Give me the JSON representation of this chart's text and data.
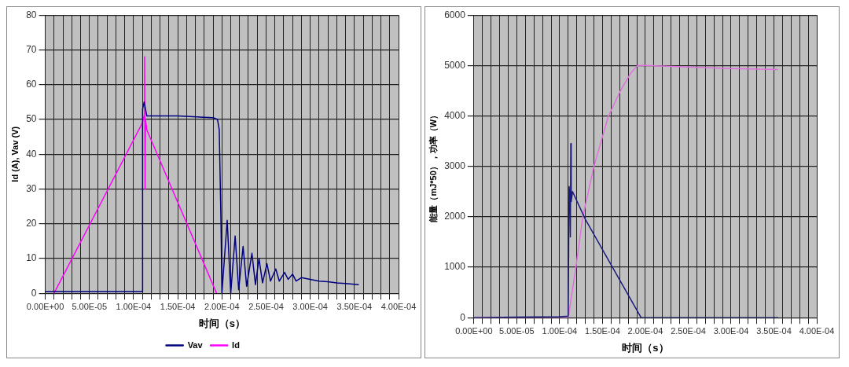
{
  "chart_data": [
    {
      "type": "line",
      "xlabel": "时间（s）",
      "ylabel": "Id (A), Vav (V)",
      "xlim": [
        0,
        0.0004
      ],
      "ylim": [
        0,
        80
      ],
      "xticks": [
        {
          "value": 0,
          "label": "0.00E+00"
        },
        {
          "value": 1e-05,
          "label": null
        },
        {
          "value": 2e-05,
          "label": null
        },
        {
          "value": 3e-05,
          "label": null
        },
        {
          "value": 4e-05,
          "label": null
        },
        {
          "value": 5e-05,
          "label": "5.00E-05"
        },
        {
          "value": 6e-05,
          "label": null
        },
        {
          "value": 7e-05,
          "label": null
        },
        {
          "value": 8e-05,
          "label": null
        },
        {
          "value": 9e-05,
          "label": null
        },
        {
          "value": 0.0001,
          "label": "1.00E-04"
        },
        {
          "value": 0.00011,
          "label": null
        },
        {
          "value": 0.00012,
          "label": null
        },
        {
          "value": 0.00013,
          "label": null
        },
        {
          "value": 0.00014,
          "label": null
        },
        {
          "value": 0.00015,
          "label": "1.50E-04"
        },
        {
          "value": 0.00016,
          "label": null
        },
        {
          "value": 0.00017,
          "label": null
        },
        {
          "value": 0.00018,
          "label": null
        },
        {
          "value": 0.00019,
          "label": null
        },
        {
          "value": 0.0002,
          "label": "2.00E-04"
        },
        {
          "value": 0.00021,
          "label": null
        },
        {
          "value": 0.00022,
          "label": null
        },
        {
          "value": 0.00023,
          "label": null
        },
        {
          "value": 0.00024,
          "label": null
        },
        {
          "value": 0.00025,
          "label": "2.50E-04"
        },
        {
          "value": 0.00026,
          "label": null
        },
        {
          "value": 0.00027,
          "label": null
        },
        {
          "value": 0.00028,
          "label": null
        },
        {
          "value": 0.00029,
          "label": null
        },
        {
          "value": 0.0003,
          "label": "3.00E-04"
        },
        {
          "value": 0.00031,
          "label": null
        },
        {
          "value": 0.00032,
          "label": null
        },
        {
          "value": 0.00033,
          "label": null
        },
        {
          "value": 0.00034,
          "label": null
        },
        {
          "value": 0.00035,
          "label": "3.50E-04"
        },
        {
          "value": 0.00036,
          "label": null
        },
        {
          "value": 0.00037,
          "label": null
        },
        {
          "value": 0.00038,
          "label": null
        },
        {
          "value": 0.00039,
          "label": null
        },
        {
          "value": 0.0004,
          "label": "4.00E-04"
        }
      ],
      "yticks": [
        0,
        10,
        20,
        30,
        40,
        50,
        60,
        70,
        80
      ],
      "grid": true,
      "legend": "bottom",
      "series": [
        {
          "name": "Vav",
          "color": "#000080",
          "x": [
            0,
            5e-05,
            0.0001,
            0.00011,
            0.0001102,
            0.000112,
            0.000115,
            0.00015,
            0.00019,
            0.000195,
            0.000197,
            0.000199,
            0.0002,
            0.000206,
            0.00021,
            0.000215,
            0.000219,
            0.000224,
            0.000228,
            0.000234,
            0.000238,
            0.000242,
            0.000246,
            0.000251,
            0.000255,
            0.000261,
            0.000265,
            0.000271,
            0.000275,
            0.00028,
            0.000284,
            0.00029,
            0.0003,
            0.00031,
            0.00032,
            0.00033,
            0.00034,
            0.000355
          ],
          "values": [
            0.5,
            0.5,
            0.5,
            0.5,
            53,
            55,
            51,
            51,
            50.5,
            50,
            47,
            20,
            0,
            21,
            0,
            16.5,
            1,
            13.5,
            2,
            11.5,
            2.5,
            10,
            3,
            8.5,
            3.5,
            7,
            3.5,
            6,
            4,
            5.5,
            3.5,
            4.5,
            4,
            3.5,
            3.3,
            3,
            2.8,
            2.5
          ]
        },
        {
          "name": "Id",
          "color": "#ff00ff",
          "x": [
            1e-05,
            0.00011,
            0.000112,
            0.0001125,
            0.000113,
            0.0001135,
            0.000115,
            0.000194
          ],
          "values": [
            0,
            49,
            51,
            68,
            30,
            50,
            47,
            0
          ]
        }
      ]
    },
    {
      "type": "line",
      "xlabel": "时间（s）",
      "ylabel": "能量（mJ*50），功率（W）",
      "xlim": [
        0,
        0.0004
      ],
      "ylim": [
        0,
        6000
      ],
      "xticks": [
        {
          "value": 0,
          "label": "0.00E+00"
        },
        {
          "value": 1e-05,
          "label": null
        },
        {
          "value": 2e-05,
          "label": null
        },
        {
          "value": 3e-05,
          "label": null
        },
        {
          "value": 4e-05,
          "label": null
        },
        {
          "value": 5e-05,
          "label": "5.00E-05"
        },
        {
          "value": 6e-05,
          "label": null
        },
        {
          "value": 7e-05,
          "label": null
        },
        {
          "value": 8e-05,
          "label": null
        },
        {
          "value": 9e-05,
          "label": null
        },
        {
          "value": 0.0001,
          "label": "1.00E-04"
        },
        {
          "value": 0.00011,
          "label": null
        },
        {
          "value": 0.00012,
          "label": null
        },
        {
          "value": 0.00013,
          "label": null
        },
        {
          "value": 0.00014,
          "label": null
        },
        {
          "value": 0.00015,
          "label": "1.50E-04"
        },
        {
          "value": 0.00016,
          "label": null
        },
        {
          "value": 0.00017,
          "label": null
        },
        {
          "value": 0.00018,
          "label": null
        },
        {
          "value": 0.00019,
          "label": null
        },
        {
          "value": 0.0002,
          "label": "2.00E-04"
        },
        {
          "value": 0.00021,
          "label": null
        },
        {
          "value": 0.00022,
          "label": null
        },
        {
          "value": 0.00023,
          "label": null
        },
        {
          "value": 0.00024,
          "label": null
        },
        {
          "value": 0.00025,
          "label": "2.50E-04"
        },
        {
          "value": 0.00026,
          "label": null
        },
        {
          "value": 0.00027,
          "label": null
        },
        {
          "value": 0.00028,
          "label": null
        },
        {
          "value": 0.00029,
          "label": null
        },
        {
          "value": 0.0003,
          "label": "3.00E-04"
        },
        {
          "value": 0.00031,
          "label": null
        },
        {
          "value": 0.00032,
          "label": null
        },
        {
          "value": 0.00033,
          "label": null
        },
        {
          "value": 0.00034,
          "label": null
        },
        {
          "value": 0.00035,
          "label": "3.50E-04"
        },
        {
          "value": 0.00036,
          "label": null
        },
        {
          "value": 0.00037,
          "label": null
        },
        {
          "value": 0.00038,
          "label": null
        },
        {
          "value": 0.00039,
          "label": null
        },
        {
          "value": 0.0004,
          "label": "4.00E-04"
        }
      ],
      "yticks": [
        0,
        1000,
        2000,
        3000,
        4000,
        5000,
        6000
      ],
      "grid": true,
      "series": [
        {
          "color": "#1a1a80",
          "x": [
            0,
            5e-05,
            0.0001,
            0.00011,
            0.000111,
            0.000112,
            0.0001125,
            0.000113,
            0.0001135,
            0.000115,
            0.00013,
            0.00015,
            0.00017,
            0.000195,
            0.0002,
            0.00025,
            0.0003,
            0.000355
          ],
          "values": [
            0,
            10,
            20,
            30,
            2600,
            2400,
            1600,
            3450,
            2300,
            2500,
            1950,
            1350,
            750,
            0,
            0,
            0,
            0,
            0
          ]
        },
        {
          "color": "#e070e0",
          "x": [
            0,
            5e-05,
            0.00011,
            0.000119,
            0.000127,
            0.00014,
            0.000157,
            0.000171,
            0.000183,
            0.000191,
            0.0002,
            0.00025,
            0.0003,
            0.000355
          ],
          "values": [
            0,
            0,
            0,
            1000,
            2000,
            3000,
            4000,
            4500,
            4850,
            5000,
            5000,
            4970,
            4940,
            4920
          ]
        }
      ]
    }
  ]
}
